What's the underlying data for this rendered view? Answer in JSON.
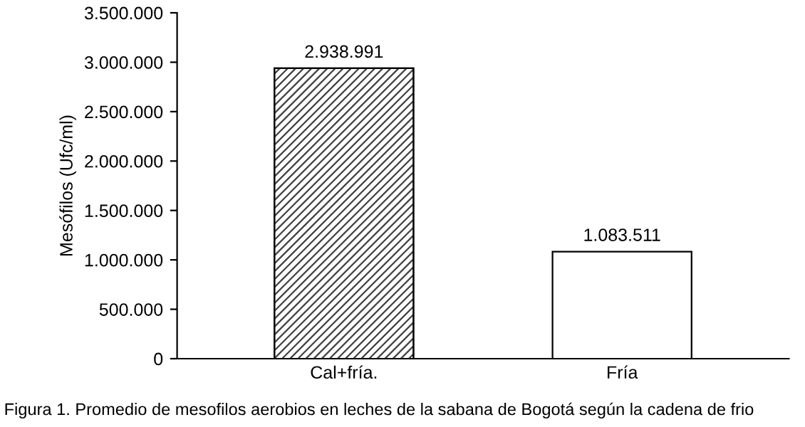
{
  "chart_data": {
    "type": "bar",
    "ylabel": "Mesófilos (Ufc/ml)",
    "categories": [
      "Cal+fría.",
      "Fría"
    ],
    "values": [
      2938991,
      1083511
    ],
    "colors": [
      "#404040",
      "#ffffff"
    ],
    "value_labels": [
      "2.938.991",
      "1.083.511"
    ],
    "ylim": [
      0,
      3500000
    ],
    "yticks": [
      {
        "value": 0,
        "label": "0"
      },
      {
        "value": 500000,
        "label": "500.000"
      },
      {
        "value": 1000000,
        "label": "1.000.000"
      },
      {
        "value": 1500000,
        "label": "1.500.000"
      },
      {
        "value": 2000000,
        "label": "2.000.000"
      },
      {
        "value": 2500000,
        "label": "2.500.000"
      },
      {
        "value": 3000000,
        "label": "3.000.000"
      },
      {
        "value": 3500000,
        "label": "3.500.000"
      }
    ],
    "grid": false,
    "annotations": [
      "Figura 1. Promedio de mesofilos aerobios en leches de la sabana de Bogotá según la cadena de frio"
    ]
  }
}
